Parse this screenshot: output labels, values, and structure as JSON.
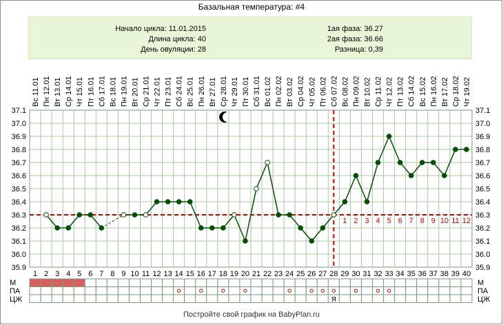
{
  "header": {
    "title": "Базальная температура: #4"
  },
  "info": {
    "cycle_start": "Начало цикла: 11.01.2015",
    "cycle_length": "Длина цикла: 40",
    "ovulation_day": "День овуляции: 28",
    "phase1": "1ая фаза: 36.27",
    "phase2": "2ая фаза: 36.66",
    "difference": "Разница: 0,39"
  },
  "footer": {
    "text": "Постройте свой график на BabyPlan.ru"
  },
  "rows": {
    "m": "М",
    "pa": "ПА",
    "czh": "ЦЖ"
  },
  "colors": {
    "grid": "#a8c8a0",
    "line": "#005000",
    "coverline": "#cc0000",
    "menstruation": "#d96060",
    "info_bg": "#e8f5d6"
  },
  "chart_data": {
    "type": "line",
    "title": "Базальная температура: #4",
    "x": [
      1,
      2,
      3,
      4,
      5,
      6,
      7,
      8,
      9,
      10,
      11,
      12,
      13,
      14,
      15,
      16,
      17,
      18,
      19,
      20,
      21,
      22,
      23,
      24,
      25,
      26,
      27,
      28,
      29,
      30,
      31,
      32,
      33,
      34,
      35,
      36,
      37,
      38,
      39,
      40
    ],
    "dates": [
      "Вс 11.01",
      "Пн 12.01",
      "Вт 13.01",
      "Ср 14.01",
      "Чт 15.01",
      "Пт 16.01",
      "Сб 17.01",
      "Вс 18.01",
      "Пн 19.01",
      "Вт 20.01",
      "Ср 21.01",
      "Чт 22.01",
      "Пт 23.01",
      "Сб 24.01",
      "Вс 25.01",
      "Пн 26.01",
      "Вт 27.01",
      "Ср 28.01",
      "Чт 29.01",
      "Пт 30.01",
      "Сб 31.01",
      "Вс 01.02",
      "Пн 02.02",
      "Вт 03.02",
      "Ср 04.02",
      "Чт 05.02",
      "Пт 06.02",
      "Сб 07.02",
      "Вс 08.02",
      "Пн 09.02",
      "Вт 10.02",
      "Ср 11.02",
      "Чт 12.02",
      "Пт 13.02",
      "Сб 14.02",
      "Вс 15.02",
      "Пн 16.02",
      "Вт 17.02",
      "Ср 18.02",
      "Чт 19.02"
    ],
    "values": [
      null,
      36.3,
      36.2,
      36.2,
      36.3,
      36.3,
      36.2,
      36.25,
      36.3,
      36.3,
      36.3,
      36.4,
      36.4,
      36.4,
      36.4,
      36.2,
      36.2,
      36.2,
      36.3,
      36.1,
      36.5,
      36.7,
      36.3,
      36.3,
      36.2,
      36.1,
      36.2,
      36.3,
      36.4,
      36.6,
      36.4,
      36.7,
      36.9,
      36.7,
      36.6,
      36.7,
      36.7,
      36.6,
      36.8,
      36.8
    ],
    "open_points": [
      2,
      9,
      11,
      19,
      21,
      22,
      28
    ],
    "broken_segment": [
      7,
      9
    ],
    "ylim": [
      35.9,
      37.1
    ],
    "y_ticks": [
      "35.9",
      "36.0",
      "36.1",
      "36.2",
      "36.3",
      "36.4",
      "36.5",
      "36.6",
      "36.7",
      "36.8",
      "36.9",
      "37.0",
      "37.1"
    ],
    "coverline": 36.3,
    "ovulation_day": 28,
    "post_ovulation_labels": [
      "1",
      "2",
      "3",
      "4",
      "5",
      "6",
      "7",
      "8",
      "9",
      "10",
      "11",
      "12"
    ],
    "menstruation_days": [
      1,
      2,
      3,
      4,
      5
    ],
    "pa_days": [
      14,
      16,
      18,
      20,
      24,
      26,
      27,
      28,
      30,
      32,
      33
    ],
    "czh_marks": [
      {
        "day": 28,
        "label": "Я"
      }
    ],
    "grid": true
  }
}
